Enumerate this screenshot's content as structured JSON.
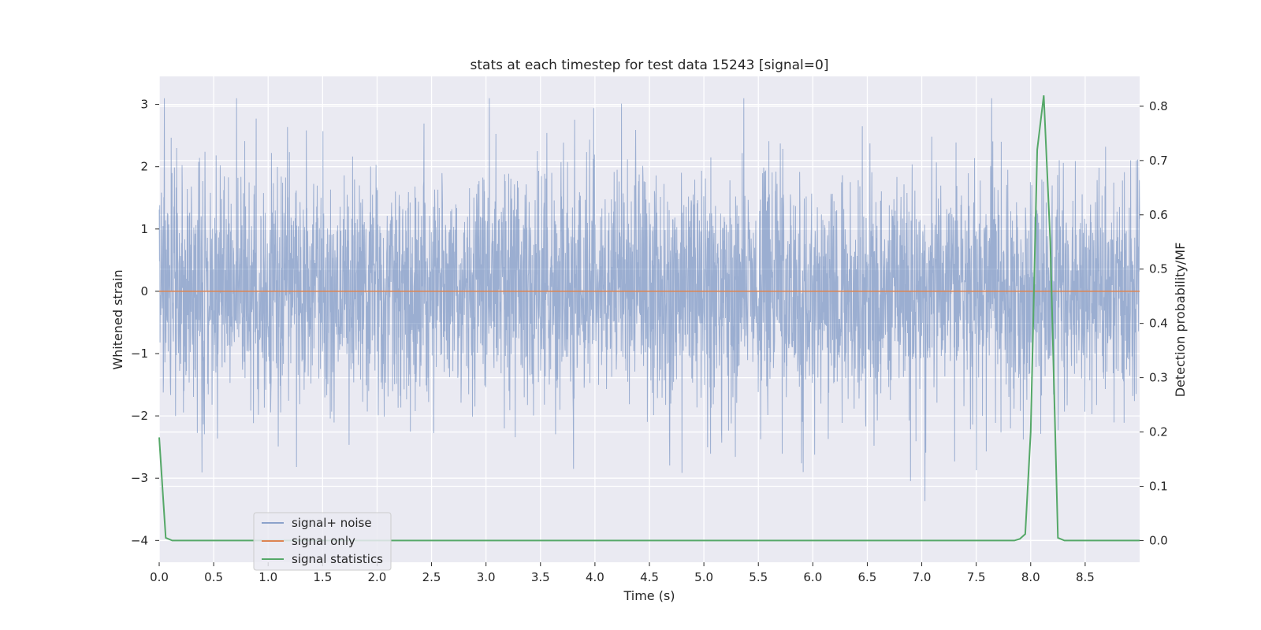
{
  "chart_data": {
    "type": "line",
    "title": "stats at each timestep for test data 15243 [signal=0]",
    "xlabel": "Time (s)",
    "ylabel_left": "Whitened strain",
    "ylabel_right": "Detection probability/MF",
    "xlim": [
      0.0,
      9.0
    ],
    "ylim_left": [
      -4.35,
      3.45
    ],
    "ylim_right": [
      -0.04,
      0.855
    ],
    "x_ticks": [
      "0.0",
      "0.5",
      "1.0",
      "1.5",
      "2.0",
      "2.5",
      "3.0",
      "3.5",
      "4.0",
      "4.5",
      "5.0",
      "5.5",
      "6.0",
      "6.5",
      "7.0",
      "7.5",
      "8.0",
      "8.5"
    ],
    "y_left_ticks": [
      "3",
      "2",
      "1",
      "0",
      "−1",
      "−2",
      "−3",
      "−4"
    ],
    "y_right_ticks": [
      "0.8",
      "0.7",
      "0.6",
      "0.5",
      "0.4",
      "0.3",
      "0.2",
      "0.1",
      "0.0"
    ],
    "grid": true,
    "legend_position": "lower-left",
    "series": [
      {
        "name": "signal+ noise",
        "color": "#4c72b0",
        "axis": "left",
        "kind": "noise",
        "duration": 9.0,
        "typical_amplitude": 1.2,
        "min": -4.0,
        "max": 3.1
      },
      {
        "name": "signal only",
        "color": "#dd8452",
        "axis": "left",
        "x": [
          0.0,
          9.0
        ],
        "y": [
          0.0,
          0.0
        ]
      },
      {
        "name": "signal statistics",
        "color": "#55a868",
        "axis": "right",
        "x": [
          0.0,
          0.06,
          0.12,
          0.5,
          1.0,
          2.0,
          3.0,
          4.0,
          5.0,
          6.0,
          7.0,
          7.5,
          7.85,
          7.9,
          7.95,
          8.0,
          8.06,
          8.12,
          8.18,
          8.25,
          8.31,
          8.5,
          9.0
        ],
        "y": [
          0.19,
          0.005,
          0.0,
          0.0,
          0.0,
          0.0,
          0.0,
          0.0,
          0.0,
          0.0,
          0.0,
          0.0,
          0.0,
          0.003,
          0.012,
          0.2,
          0.72,
          0.82,
          0.55,
          0.005,
          0.0,
          0.0,
          0.0
        ]
      }
    ]
  }
}
